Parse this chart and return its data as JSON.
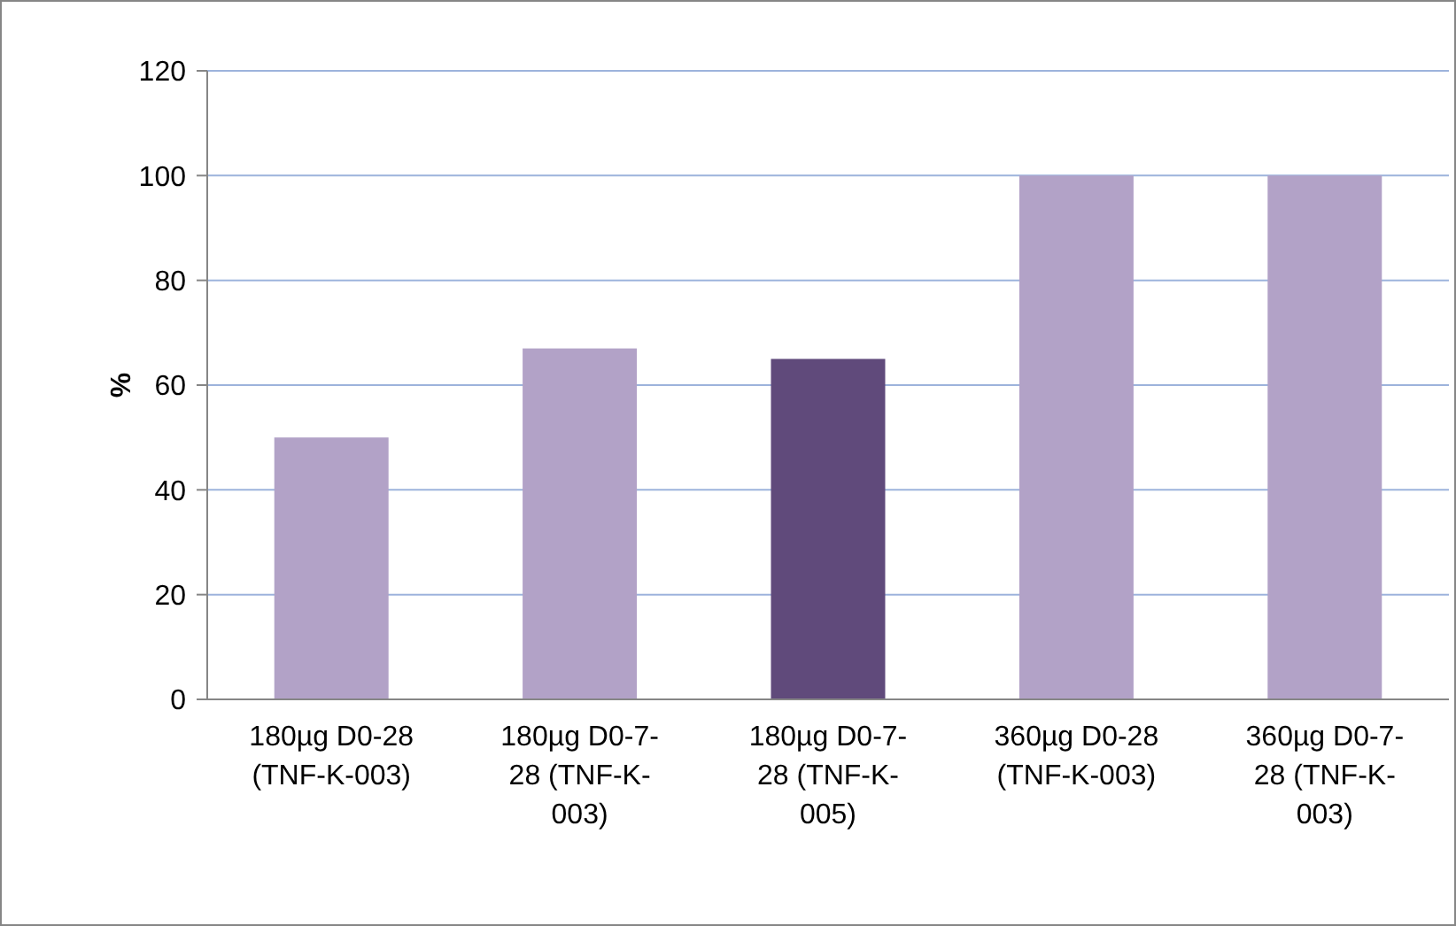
{
  "chart_data": {
    "type": "bar",
    "ylabel": "%",
    "categories": [
      "180µg D0-28 (TNF-K-003)",
      "180µg D0-7-28 (TNF-K-003)",
      "180µg D0-7-28 (TNF-K-005)",
      "360µg D0-28 (TNF-K-003)",
      "360µg D0-7-28 (TNF-K-003)"
    ],
    "values": [
      50,
      67,
      65,
      100,
      100
    ],
    "colors": [
      "#b2a2c7",
      "#b2a2c7",
      "#604a7b",
      "#b2a2c7",
      "#b2a2c7"
    ],
    "ylim": [
      0,
      120
    ],
    "yticks": [
      0,
      20,
      40,
      60,
      80,
      100,
      120
    ],
    "grid": "y"
  }
}
